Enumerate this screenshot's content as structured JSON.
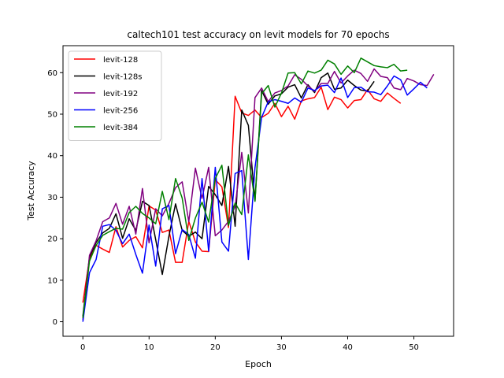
{
  "chart_data": {
    "type": "line",
    "title": "caltech101 test accuracy on levit models for 70 epochs",
    "xlabel": "Epoch",
    "ylabel": "Test Accuracy",
    "xlim": [
      -3,
      56
    ],
    "ylim": [
      -3.5,
      66.5
    ],
    "xticks": [
      0,
      10,
      20,
      30,
      40,
      50
    ],
    "yticks": [
      0,
      10,
      20,
      30,
      40,
      50,
      60
    ],
    "grid": false,
    "legend_position": "top-left",
    "series": [
      {
        "name": "levit-128",
        "color": "#ff0000",
        "x": [
          0,
          1,
          2,
          3,
          4,
          5,
          6,
          7,
          8,
          9,
          10,
          11,
          12,
          13,
          14,
          15,
          16,
          17,
          18,
          19,
          20,
          21,
          22,
          23,
          24,
          25,
          26,
          27,
          28,
          29,
          30,
          31,
          32,
          33,
          34,
          35,
          36,
          37,
          38,
          39,
          40,
          41,
          42,
          43,
          44,
          45,
          46,
          47,
          48
        ],
        "values": [
          4.6,
          15.2,
          18.4,
          17.5,
          16.7,
          22.9,
          18.0,
          19.6,
          20.5,
          17.8,
          27.9,
          26.9,
          21.5,
          22.1,
          14.3,
          14.3,
          24.2,
          19.2,
          17.0,
          16.9,
          34.2,
          32.5,
          22.7,
          54.3,
          50.3,
          49.7,
          51.0,
          49.2,
          50.2,
          52.6,
          49.4,
          51.9,
          48.8,
          53.2,
          53.7,
          54.0,
          56.5,
          51.1,
          54.1,
          53.5,
          51.5,
          53.3,
          53.5,
          55.9,
          53.7,
          53.1,
          55.1,
          53.8,
          52.6
        ]
      },
      {
        "name": "levit-128s",
        "color": "#000000",
        "x": [
          0,
          1,
          2,
          3,
          4,
          5,
          6,
          7,
          8,
          9,
          10,
          11,
          12,
          13,
          14,
          15,
          16,
          17,
          18,
          19,
          20,
          21,
          22,
          23,
          24,
          25,
          26,
          27,
          28,
          29,
          30,
          31,
          32,
          33,
          34,
          35,
          36,
          37,
          38,
          39,
          40,
          41,
          42,
          43,
          44
        ],
        "values": [
          1.3,
          15.6,
          19.1,
          21.4,
          22.5,
          26.0,
          20.1,
          24.8,
          22.0,
          29.0,
          28.0,
          19.8,
          11.4,
          20.6,
          28.4,
          22.0,
          20.6,
          21.6,
          20.0,
          32.6,
          30.6,
          28.0,
          37.4,
          23.0,
          51.0,
          47.3,
          29.1,
          55.7,
          52.4,
          54.4,
          54.9,
          56.5,
          57.1,
          53.9,
          57.1,
          55.2,
          58.8,
          59.9,
          56.0,
          56.3,
          58.2,
          56.9,
          55.8,
          55.6,
          57.9
        ]
      },
      {
        "name": "levit-192",
        "color": "#800080",
        "x": [
          0,
          1,
          2,
          3,
          4,
          5,
          6,
          7,
          8,
          9,
          10,
          11,
          12,
          13,
          14,
          15,
          16,
          17,
          18,
          19,
          20,
          21,
          22,
          23,
          24,
          25,
          26,
          27,
          28,
          29,
          30,
          31,
          32,
          33,
          34,
          35,
          36,
          37,
          38,
          39,
          40,
          41,
          42,
          43,
          44,
          45,
          46,
          47,
          48,
          49,
          50,
          51,
          52,
          53
        ],
        "values": [
          0.5,
          16.0,
          19.5,
          24.1,
          25.0,
          28.5,
          23.5,
          27.8,
          21.1,
          32.1,
          19.0,
          27.2,
          25.5,
          28.5,
          32.3,
          33.7,
          24.1,
          37.0,
          29.7,
          37.2,
          20.7,
          22.1,
          24.2,
          27.7,
          40.8,
          26.2,
          54.0,
          56.3,
          53.0,
          55.1,
          55.7,
          56.8,
          59.5,
          58.4,
          56.8,
          55.5,
          57.4,
          57.4,
          60.3,
          57.5,
          59.2,
          60.6,
          59.8,
          57.9,
          60.9,
          59.1,
          58.8,
          56.3,
          55.9,
          58.6,
          58.0,
          57.1,
          56.9,
          59.6
        ]
      },
      {
        "name": "levit-256",
        "color": "#0000ff",
        "x": [
          0,
          1,
          2,
          3,
          4,
          5,
          6,
          7,
          8,
          9,
          10,
          11,
          12,
          13,
          14,
          15,
          16,
          17,
          18,
          19,
          20,
          21,
          22,
          23,
          24,
          25,
          26,
          27,
          28,
          29,
          30,
          31,
          32,
          33,
          34,
          35,
          36,
          37,
          38,
          39,
          40,
          41,
          42,
          43,
          44,
          45,
          46,
          47,
          48,
          49,
          50,
          51,
          52
        ],
        "values": [
          0.0,
          11.8,
          15.0,
          23.0,
          23.4,
          22.0,
          18.8,
          21.1,
          16.2,
          11.7,
          23.3,
          13.4,
          27.2,
          28.0,
          16.4,
          22.2,
          21.0,
          15.3,
          34.5,
          17.0,
          37.2,
          19.2,
          17.0,
          35.7,
          36.4,
          15.0,
          37.1,
          49.2,
          53.0,
          53.5,
          53.1,
          52.6,
          53.9,
          52.9,
          56.3,
          55.7,
          56.8,
          57.0,
          55.2,
          58.7,
          54.0,
          56.4,
          56.5,
          55.4,
          55.3,
          54.7,
          56.8,
          59.2,
          58.3,
          54.6,
          56.1,
          57.7,
          56.3
        ]
      },
      {
        "name": "levit-384",
        "color": "#008000",
        "x": [
          0,
          1,
          2,
          3,
          4,
          5,
          6,
          7,
          8,
          9,
          10,
          11,
          12,
          13,
          14,
          15,
          16,
          17,
          18,
          19,
          20,
          21,
          22,
          23,
          24,
          25,
          26,
          27,
          28,
          29,
          30,
          31,
          32,
          33,
          34,
          35,
          36,
          37,
          38,
          39,
          40,
          41,
          42,
          43,
          44,
          45,
          46,
          47,
          48,
          49
        ],
        "values": [
          0.9,
          14.6,
          18.4,
          20.8,
          21.7,
          22.5,
          22.3,
          26.3,
          27.8,
          26.1,
          25.0,
          23.6,
          31.4,
          24.6,
          34.5,
          29.8,
          19.6,
          25.0,
          28.8,
          24.0,
          34.5,
          37.7,
          23.2,
          28.6,
          25.8,
          40.2,
          29.0,
          54.9,
          56.9,
          51.7,
          55.1,
          59.9,
          60.0,
          57.3,
          60.4,
          59.9,
          60.6,
          63.0,
          62.1,
          59.6,
          61.6,
          60.0,
          63.5,
          62.6,
          61.7,
          61.4,
          61.2,
          62.0,
          60.4,
          60.6
        ]
      }
    ]
  }
}
